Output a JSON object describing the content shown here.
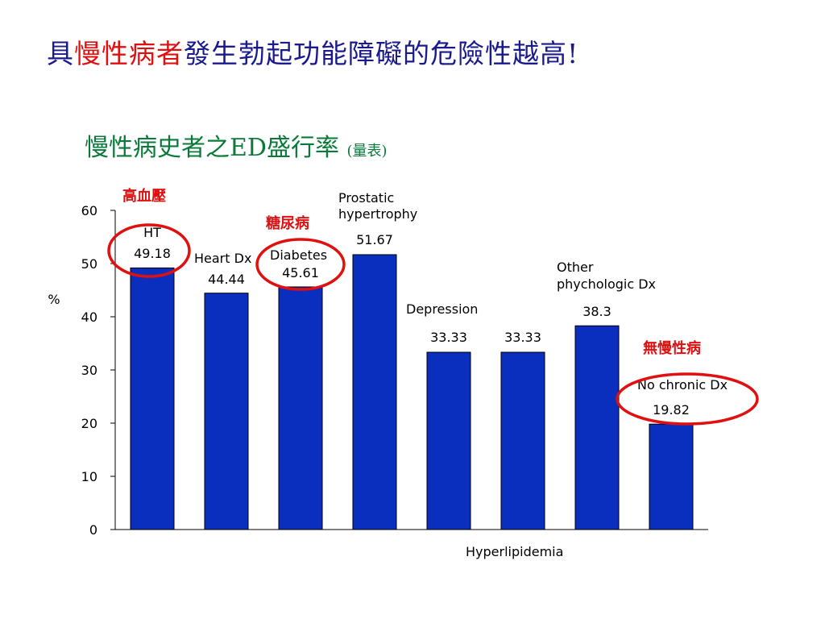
{
  "slide": {
    "title_prefix": "具",
    "title_highlight": "慢性病者",
    "title_rest": "發生勃起功能障礙的危險性越高!"
  },
  "chart_title": {
    "main": "慢性病史者之ED盛行率",
    "sub": "(量表)"
  },
  "chart_data": {
    "type": "bar",
    "ylabel": "%",
    "xlabel": "",
    "ylim": [
      0,
      60
    ],
    "yticks": [
      0,
      10,
      20,
      30,
      40,
      50,
      60
    ],
    "grid": false,
    "bar_color": "#0a2fbf",
    "categories": [
      "HT",
      "Heart Dx",
      "Diabetes",
      "Prostatic hypertrophy",
      "Depression",
      "Hyperlipidemia",
      "Other phychologic Dx",
      "No chronic Dx"
    ],
    "values": [
      49.18,
      44.44,
      45.61,
      51.67,
      33.33,
      33.33,
      38.3,
      19.82
    ],
    "value_labels": [
      "49.18",
      "44.44",
      "45.61",
      "51.67",
      "33.33",
      "33.33",
      "38.3",
      "19.82"
    ]
  },
  "annotations": {
    "ht": "高血壓",
    "diabetes": "糖尿病",
    "no_chronic": "無慢性病",
    "circle_color": "#e01010"
  }
}
